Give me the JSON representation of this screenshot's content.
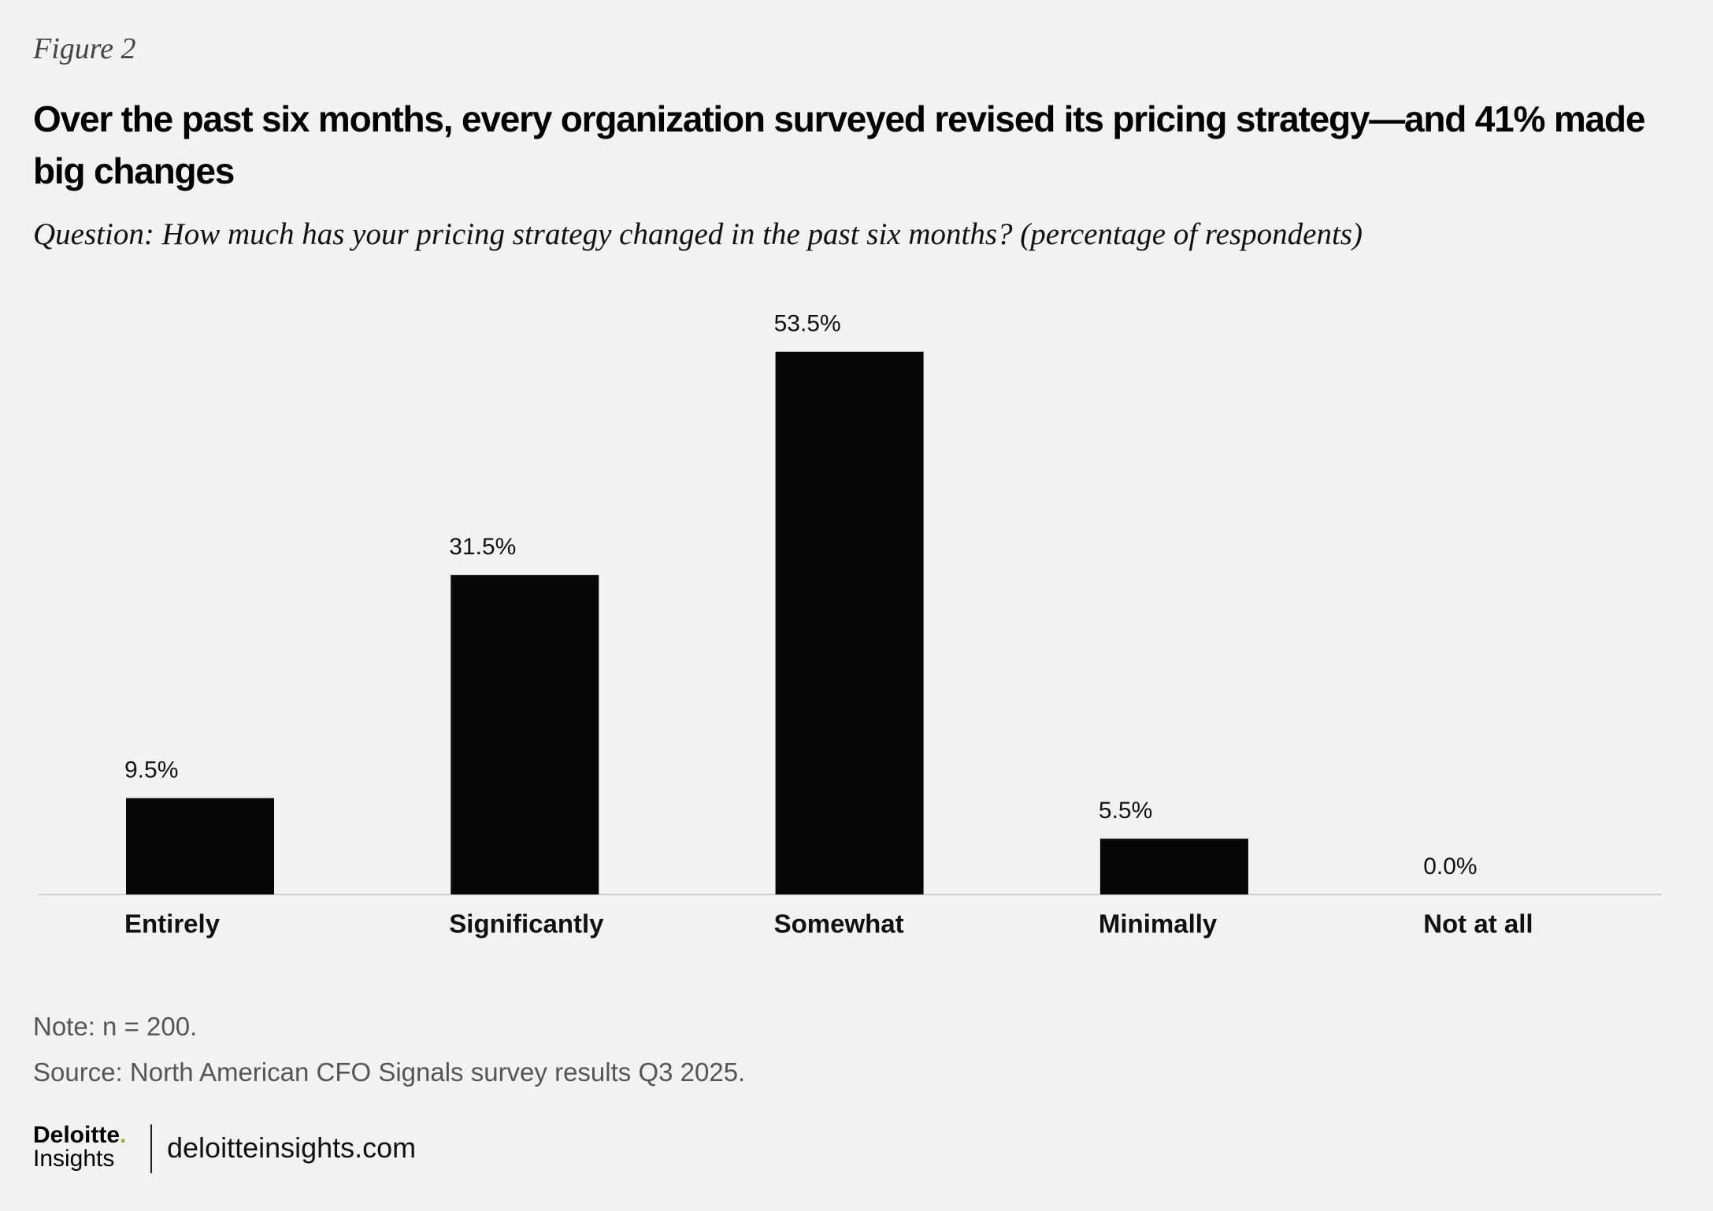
{
  "figure_label": "Figure 2",
  "chart_data": {
    "type": "bar",
    "title": "Over the past six months, every organization surveyed revised its pricing strategy—and 41% made big changes",
    "subtitle": "Question: How much has your pricing strategy changed in the past six months? (percentage of respondents)",
    "categories": [
      "Entirely",
      "Significantly",
      "Somewhat",
      "Minimally",
      "Not at all"
    ],
    "values": [
      9.5,
      31.5,
      53.5,
      5.5,
      0.0
    ],
    "value_labels": [
      "9.5%",
      "31.5%",
      "53.5%",
      "5.5%",
      "0.0%"
    ],
    "color": "#050708",
    "ylim": [
      0,
      60
    ]
  },
  "note": "Note: n = 200.",
  "source": "Source: North American CFO Signals survey results Q3 2025.",
  "footer": {
    "brand": "Deloitte",
    "brand_dot": ".",
    "brand_sub": "Insights",
    "url": "deloitteinsights.com"
  }
}
